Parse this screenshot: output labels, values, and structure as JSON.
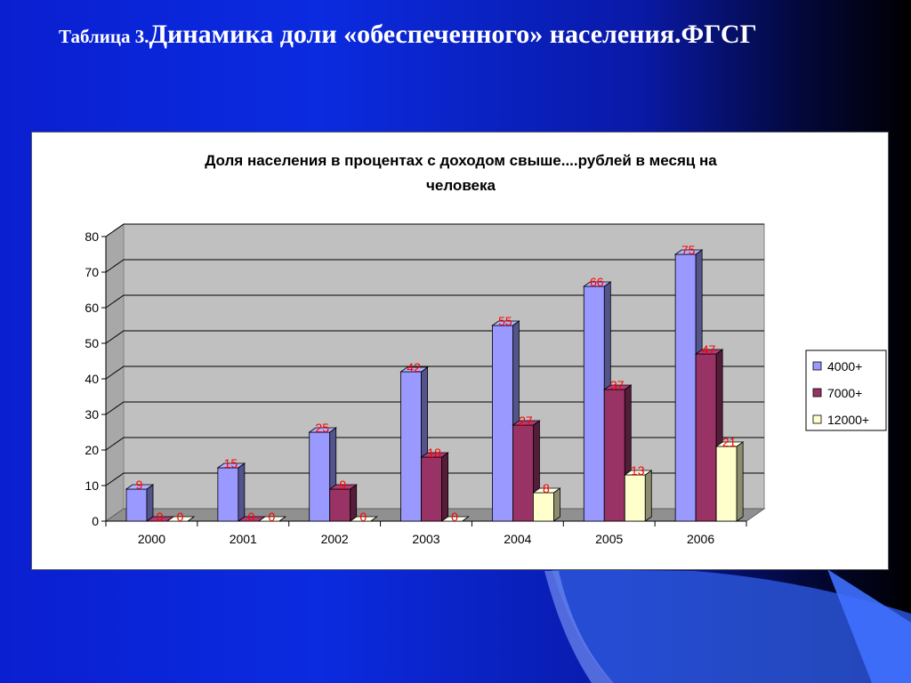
{
  "slide": {
    "title_prefix": "Таблица 3.",
    "title_main": "Динамика доли «обеспеченного» населения.ФГСГ"
  },
  "chart_data": {
    "type": "bar",
    "title_line1": "Доля населения в процентах с доходом свыше....рублей в месяц на",
    "title_line2": "человека",
    "categories": [
      "2000",
      "2001",
      "2002",
      "2003",
      "2004",
      "2005",
      "2006"
    ],
    "series": [
      {
        "name": "4000+",
        "values": [
          9,
          15,
          25,
          42,
          55,
          66,
          75
        ],
        "color": "#9999ff"
      },
      {
        "name": "7000+",
        "values": [
          0,
          0,
          9,
          18,
          27,
          37,
          47
        ],
        "color": "#993366"
      },
      {
        "name": "12000+",
        "values": [
          0,
          0,
          0,
          0,
          8,
          13,
          21
        ],
        "color": "#ffffcc"
      }
    ],
    "ylim": [
      0,
      80
    ],
    "yticks": [
      0,
      10,
      20,
      30,
      40,
      50,
      60,
      70,
      80
    ],
    "grid": true,
    "legend_position": "right",
    "data_label_color": "#ff0000",
    "wall_color": "#c0c0c0"
  }
}
